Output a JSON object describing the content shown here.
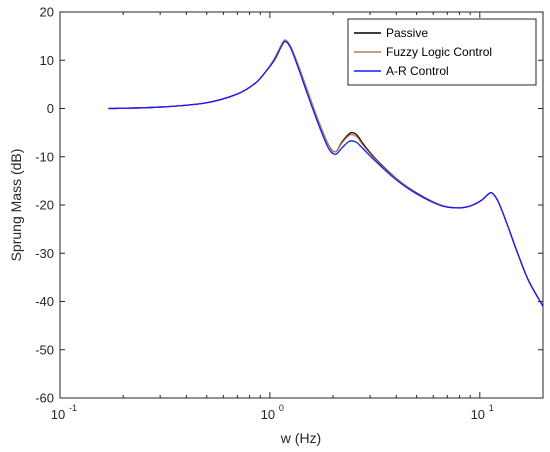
{
  "chart_data": {
    "type": "line",
    "xscale": "log",
    "xlabel": "w (Hz)",
    "ylabel": "Sprung Mass (dB)",
    "xlim": [
      0.1,
      20
    ],
    "ylim": [
      -60,
      20
    ],
    "xticks": [
      {
        "value": 0.1,
        "base": "10",
        "exp": "-1"
      },
      {
        "value": 1,
        "label": "10",
        "exp": "0"
      },
      {
        "value": 10,
        "base": "10",
        "exp": "1"
      }
    ],
    "yticks": [
      20,
      10,
      0,
      -10,
      -20,
      -30,
      -40,
      -50,
      -60
    ],
    "grid": false,
    "legend_position": "top-right",
    "series": [
      {
        "name": "Passive",
        "color": "#000000",
        "x": [
          0.17,
          0.3,
          0.5,
          0.7,
          0.85,
          0.95,
          1.05,
          1.13,
          1.18,
          1.25,
          1.35,
          1.5,
          1.7,
          1.9,
          2.05,
          2.2,
          2.35,
          2.45,
          2.6,
          2.8,
          3.2,
          4,
          5,
          6.5,
          7.8,
          9,
          10.2,
          11,
          11.5,
          12.3,
          13.5,
          15,
          17,
          20
        ],
        "y": [
          0.0,
          0.3,
          1.2,
          3.0,
          5.2,
          7.5,
          10.3,
          13.0,
          14.2,
          13.0,
          9.5,
          4.0,
          -2.5,
          -7.5,
          -9.0,
          -7.0,
          -5.5,
          -5.0,
          -5.5,
          -7.5,
          -10.5,
          -14.5,
          -17.5,
          -20.0,
          -20.6,
          -20.2,
          -19.0,
          -17.7,
          -17.6,
          -19.5,
          -24.0,
          -29.5,
          -35.5,
          -41.0
        ]
      },
      {
        "name": "Fuzzy Logic Control",
        "color": "#c07a4a",
        "x": [
          0.17,
          0.3,
          0.5,
          0.7,
          0.85,
          0.95,
          1.05,
          1.13,
          1.18,
          1.25,
          1.35,
          1.5,
          1.7,
          1.9,
          2.05,
          2.2,
          2.35,
          2.45,
          2.6,
          2.8,
          3.2,
          4,
          5,
          6.5,
          7.8,
          9,
          10.2,
          11,
          11.5,
          12.3,
          13.5,
          15,
          17,
          20
        ],
        "y": [
          0.0,
          0.3,
          1.2,
          3.0,
          5.2,
          7.5,
          10.3,
          13.0,
          14.2,
          13.0,
          9.5,
          4.0,
          -2.5,
          -7.5,
          -9.0,
          -7.2,
          -5.8,
          -5.4,
          -5.9,
          -7.8,
          -10.7,
          -14.6,
          -17.6,
          -20.0,
          -20.6,
          -20.2,
          -19.0,
          -17.7,
          -17.6,
          -19.5,
          -24.0,
          -29.5,
          -35.5,
          -41.0
        ]
      },
      {
        "name": "A-R Control",
        "color": "#1a1aff",
        "x": [
          0.17,
          0.3,
          0.5,
          0.7,
          0.85,
          0.95,
          1.05,
          1.13,
          1.18,
          1.25,
          1.35,
          1.5,
          1.7,
          1.9,
          2.05,
          2.2,
          2.35,
          2.45,
          2.6,
          2.8,
          3.2,
          4,
          5,
          6.5,
          7.8,
          9,
          10.2,
          11,
          11.5,
          12.3,
          13.5,
          15,
          17,
          20
        ],
        "y": [
          0.0,
          0.3,
          1.2,
          3.0,
          5.2,
          7.5,
          10.0,
          12.7,
          13.9,
          12.7,
          9.0,
          3.3,
          -3.2,
          -8.2,
          -9.5,
          -8.2,
          -7.0,
          -6.7,
          -7.1,
          -8.5,
          -11.0,
          -14.8,
          -17.7,
          -20.1,
          -20.6,
          -20.2,
          -19.0,
          -17.7,
          -17.6,
          -19.5,
          -24.0,
          -29.5,
          -35.5,
          -41.0
        ]
      }
    ]
  }
}
